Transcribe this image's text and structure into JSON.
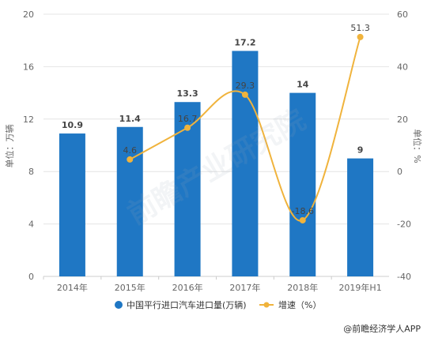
{
  "chart_data": {
    "type": "bar",
    "categories": [
      "2014年",
      "2015年",
      "2016年",
      "2017年",
      "2018年",
      "2019年H1"
    ],
    "series": [
      {
        "name": "中国平行进口汽车进口量(万辆)",
        "kind": "bar",
        "axis": "left",
        "color": "#1f77c4",
        "values": [
          10.9,
          11.4,
          13.3,
          17.2,
          14,
          9
        ],
        "labels": [
          "10.9",
          "11.4",
          "13.3",
          "17.2",
          "14",
          "9"
        ]
      },
      {
        "name": "增速（%）",
        "kind": "line",
        "axis": "right",
        "color": "#f0b33c",
        "values": [
          null,
          4.6,
          16.7,
          29.3,
          -18.6,
          51.3
        ],
        "labels": [
          "",
          "4.6",
          "16.7",
          "29.3",
          "-18.6",
          "51.3"
        ]
      }
    ],
    "ylabel": "单位：万辆",
    "y2label": "单位：%",
    "ylim": [
      0,
      20
    ],
    "yticks": [
      0,
      4,
      8,
      12,
      16,
      20
    ],
    "y2lim": [
      -40,
      60
    ],
    "y2ticks": [
      -40,
      -20,
      0,
      20,
      40,
      60
    ],
    "grid": true,
    "legend": "bottom"
  },
  "watermark": "前瞻产业研究院",
  "source": "@前瞻经济学人APP"
}
